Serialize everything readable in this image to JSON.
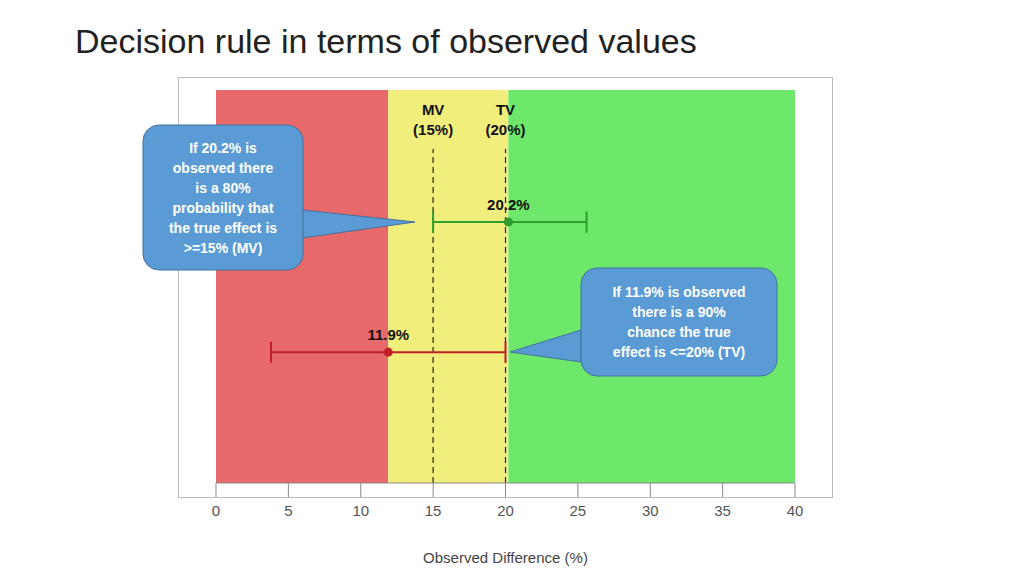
{
  "chart_data": {
    "type": "scatter",
    "title": "Decision rule in terms of observed values",
    "x_label": "Observed Difference (%)",
    "xlim": [
      0,
      40
    ],
    "xticks": [
      0,
      5,
      10,
      15,
      20,
      25,
      30,
      35,
      40
    ],
    "tick_labels": "x",
    "bands": [
      {
        "from": 0,
        "to": 11.9,
        "color": "#e8696b"
      },
      {
        "from": 11.9,
        "to": 20.2,
        "color": "#f2ee7c"
      },
      {
        "from": 20.2,
        "to": 40,
        "color": "#6de86b"
      }
    ],
    "reference_lines": [
      {
        "value": 15,
        "label": "MV",
        "sublabel": "(15%)",
        "line_style": "dashed"
      },
      {
        "value": 20,
        "label": "TV",
        "sublabel": "(20%)",
        "line_style": "dashed"
      }
    ],
    "points": [
      {
        "value": 20.2,
        "label": "20.2%",
        "lower": 15,
        "upper": 25.6,
        "color": "#2e9e2e"
      },
      {
        "value": 11.9,
        "label": "11.9%",
        "lower": 3.8,
        "upper": 20,
        "color": "#c0202a"
      }
    ],
    "annotations": [
      {
        "lines": [
          "If 20.2% is",
          "observed there",
          "is a 80%",
          "probability that",
          "the true effect is",
          ">=15% (MV)"
        ]
      },
      {
        "lines": [
          "If 11.9% is observed",
          "there is a 90%",
          "chance the true",
          "effect is <=20% (TV)"
        ]
      }
    ]
  }
}
